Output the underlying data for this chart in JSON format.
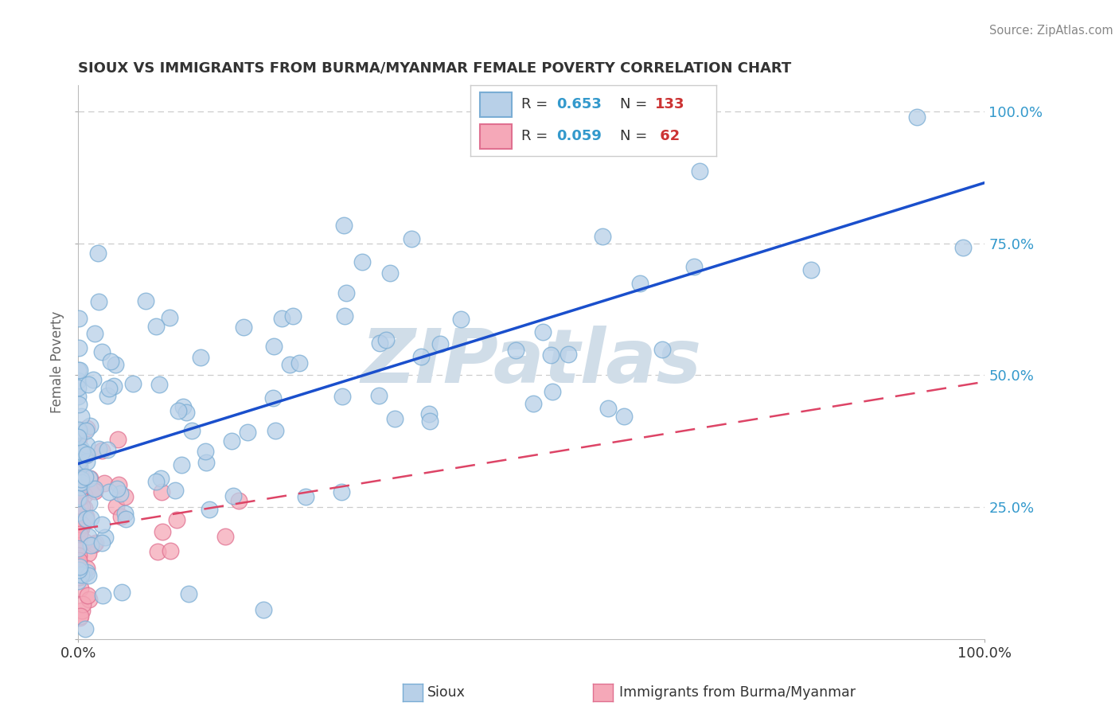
{
  "title": "SIOUX VS IMMIGRANTS FROM BURMA/MYANMAR FEMALE POVERTY CORRELATION CHART",
  "source": "Source: ZipAtlas.com",
  "ylabel": "Female Poverty",
  "y_ticks": [
    0.0,
    0.25,
    0.5,
    0.75,
    1.0
  ],
  "y_tick_labels": [
    "",
    "25.0%",
    "50.0%",
    "75.0%",
    "100.0%"
  ],
  "sioux_color": "#b8d0e8",
  "sioux_edge": "#7aadd4",
  "burma_color": "#f5a8b8",
  "burma_edge": "#e07090",
  "line_sioux": "#1a4fcc",
  "line_burma": "#dd4466",
  "background": "#ffffff",
  "watermark_text": "ZIPatlas",
  "watermark_color": "#d0dde8",
  "legend_r1_val": "0.653",
  "legend_n1_val": "133",
  "legend_r2_val": "0.059",
  "legend_n2_val": " 62",
  "r_color": "#3399cc",
  "n_color": "#cc3333",
  "grid_color": "#cccccc",
  "tick_color": "#3399cc",
  "title_color": "#333333",
  "source_color": "#888888",
  "ylabel_color": "#666666"
}
